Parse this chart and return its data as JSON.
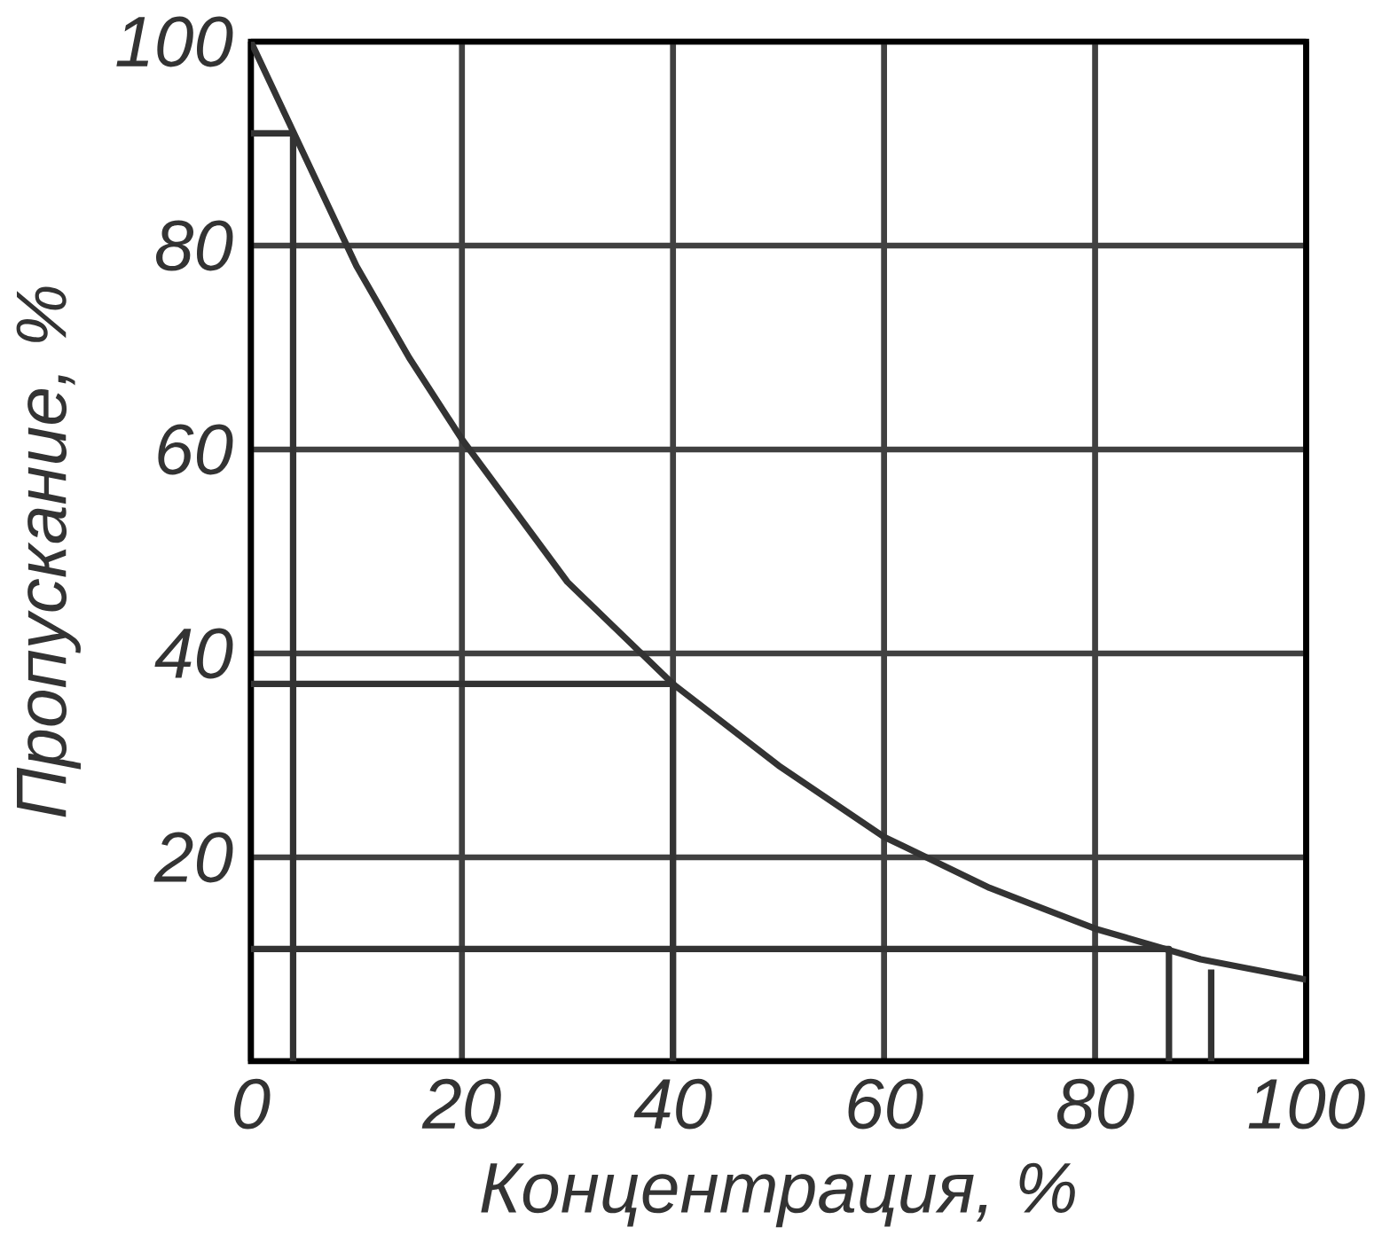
{
  "chart_data": {
    "type": "line",
    "xlabel": "Концентрация, %",
    "ylabel": "Пропускание, %",
    "xlim": [
      0,
      100
    ],
    "ylim": [
      0,
      100
    ],
    "xticks": [
      0,
      20,
      40,
      60,
      80,
      100
    ],
    "yticks": [
      20,
      40,
      60,
      80,
      100
    ],
    "grid": true,
    "marker": "none",
    "line_style": "solid",
    "series": [
      {
        "color": "#333333",
        "x": [
          0,
          5,
          10,
          15,
          20,
          25,
          30,
          35,
          40,
          50,
          60,
          70,
          80,
          90,
          100
        ],
        "values": [
          100,
          89,
          78,
          69,
          61,
          54,
          47,
          42,
          37,
          29,
          22,
          17,
          13,
          10,
          8
        ]
      },
      {
        "color": "#333333",
        "x": [
          0,
          4,
          4
        ],
        "values": [
          91,
          91,
          0
        ]
      },
      {
        "color": "#333333",
        "x": [
          0,
          40,
          40
        ],
        "values": [
          37,
          37,
          0
        ]
      },
      {
        "color": "#333333",
        "x": [
          0,
          87,
          87
        ],
        "values": [
          11,
          11,
          0
        ]
      },
      {
        "color": "#333333",
        "x": [
          91,
          91
        ],
        "values": [
          9,
          0
        ]
      }
    ]
  }
}
